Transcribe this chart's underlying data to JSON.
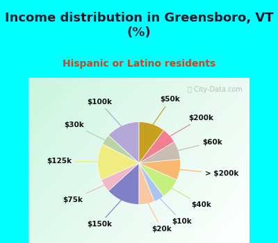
{
  "title": "Income distribution in Greensboro, VT\n(%)",
  "subtitle": "Hispanic or Latino residents",
  "title_color": "#1a1a2e",
  "subtitle_color": "#cc4422",
  "background_color": "#00ffff",
  "watermark": "ⓘ City-Data.com",
  "labels": [
    "$100k",
    "$30k",
    "$125k",
    "$75k",
    "$150k",
    "$20k",
    "$10k",
    "$40k",
    "> $200k",
    "$60k",
    "$200k",
    "$50k"
  ],
  "values": [
    13,
    4,
    14,
    5,
    13,
    6,
    4,
    8,
    8,
    7,
    6,
    10
  ],
  "colors": [
    "#b3a8d8",
    "#b8d4a8",
    "#f0ec80",
    "#f0b8c8",
    "#8080c8",
    "#f8c8a0",
    "#a8c4f0",
    "#c4f080",
    "#f8b870",
    "#c8bdb0",
    "#f08090",
    "#c8a020"
  ],
  "startangle": 90,
  "figsize": [
    4.0,
    3.5
  ],
  "dpi": 100,
  "title_fontsize": 13,
  "subtitle_fontsize": 10,
  "label_fontsize": 7.5
}
